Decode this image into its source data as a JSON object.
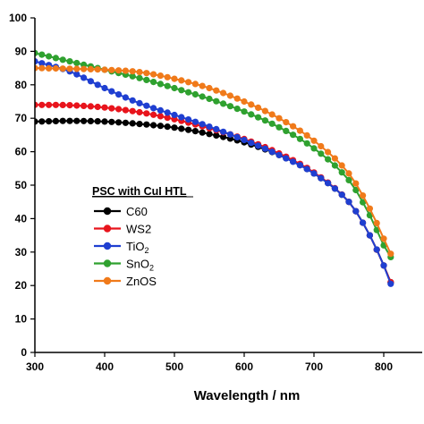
{
  "chart_data": {
    "type": "line",
    "xlabel": "Wavelength / nm",
    "ylabel": "",
    "xlim": [
      300,
      810
    ],
    "ylim": [
      0,
      100
    ],
    "x_ticks": [
      300,
      400,
      500,
      600,
      700,
      800
    ],
    "x_tick_labels": [
      "300",
      "400",
      "500",
      "600",
      "700",
      "800"
    ],
    "y_ticks": [
      0,
      10,
      20,
      30,
      40,
      50,
      60,
      70,
      80,
      90,
      100
    ],
    "y_tick_labels": [
      "0",
      "10",
      "20",
      "30",
      "40",
      "50",
      "60",
      "70",
      "80",
      "90",
      "100"
    ],
    "grid": false,
    "legend": {
      "title": "PSC with CuI HTL",
      "placement": "center-left",
      "entries": [
        {
          "label": "C60",
          "sub": ""
        },
        {
          "label": "WS2",
          "sub": ""
        },
        {
          "label": "TiO",
          "sub": "2"
        },
        {
          "label": "SnO",
          "sub": "2"
        },
        {
          "label": "ZnOS",
          "sub": ""
        }
      ]
    },
    "series": [
      {
        "name": "C60",
        "color": "#000000",
        "points": [
          [
            300,
            69.0
          ],
          [
            350,
            69.2
          ],
          [
            400,
            69.0
          ],
          [
            450,
            68.3
          ],
          [
            500,
            67.2
          ],
          [
            550,
            65.3
          ],
          [
            600,
            62.8
          ],
          [
            650,
            59.0
          ],
          [
            700,
            53.5
          ],
          [
            750,
            45.0
          ],
          [
            780,
            35.0
          ],
          [
            800,
            26.0
          ],
          [
            810,
            21.0
          ]
        ]
      },
      {
        "name": "WS2",
        "color": "#e8141c",
        "points": [
          [
            300,
            74.0
          ],
          [
            350,
            73.9
          ],
          [
            400,
            73.2
          ],
          [
            450,
            71.8
          ],
          [
            500,
            69.7
          ],
          [
            550,
            67.0
          ],
          [
            600,
            63.8
          ],
          [
            650,
            59.5
          ],
          [
            700,
            53.8
          ],
          [
            750,
            45.0
          ],
          [
            780,
            35.0
          ],
          [
            800,
            26.0
          ],
          [
            810,
            21.0
          ]
        ]
      },
      {
        "name": "TiO2",
        "color": "#1f3fd1",
        "points": [
          [
            300,
            87.0
          ],
          [
            350,
            84.0
          ],
          [
            400,
            79.0
          ],
          [
            450,
            74.5
          ],
          [
            500,
            71.0
          ],
          [
            550,
            67.5
          ],
          [
            600,
            63.5
          ],
          [
            650,
            59.0
          ],
          [
            700,
            53.5
          ],
          [
            750,
            45.0
          ],
          [
            780,
            35.0
          ],
          [
            800,
            26.0
          ],
          [
            810,
            20.5
          ]
        ]
      },
      {
        "name": "SnO2",
        "color": "#2fa12f",
        "points": [
          [
            300,
            89.5
          ],
          [
            350,
            87.0
          ],
          [
            400,
            84.5
          ],
          [
            450,
            82.0
          ],
          [
            500,
            79.0
          ],
          [
            550,
            75.8
          ],
          [
            600,
            72.0
          ],
          [
            650,
            67.3
          ],
          [
            700,
            61.0
          ],
          [
            750,
            51.5
          ],
          [
            780,
            41.0
          ],
          [
            800,
            32.0
          ],
          [
            810,
            28.5
          ]
        ]
      },
      {
        "name": "ZnOS",
        "color": "#f07a1a",
        "points": [
          [
            300,
            85.0
          ],
          [
            350,
            84.8
          ],
          [
            400,
            84.5
          ],
          [
            450,
            83.8
          ],
          [
            500,
            81.8
          ],
          [
            550,
            79.0
          ],
          [
            600,
            75.0
          ],
          [
            650,
            70.0
          ],
          [
            700,
            63.3
          ],
          [
            750,
            53.5
          ],
          [
            780,
            43.0
          ],
          [
            800,
            34.0
          ],
          [
            810,
            29.5
          ]
        ]
      }
    ]
  }
}
